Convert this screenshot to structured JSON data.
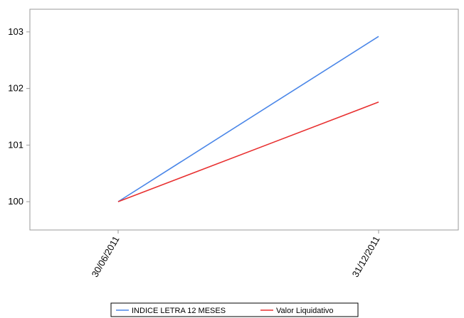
{
  "chart_data": {
    "type": "line",
    "x": [
      "30/06/2011",
      "31/12/2011"
    ],
    "series": [
      {
        "name": "INDICE LETRA 12 MESES",
        "values": [
          100,
          102.92
        ],
        "color": "#4a86e8"
      },
      {
        "name": "Valor Liquidativo",
        "values": [
          100,
          101.76
        ],
        "color": "#e83030"
      }
    ],
    "title": "",
    "xlabel": "",
    "ylabel": "",
    "ylim": [
      99.5,
      103.4
    ],
    "yticks": [
      100,
      101,
      102,
      103
    ],
    "grid": false,
    "legend_position": "bottom-center"
  }
}
